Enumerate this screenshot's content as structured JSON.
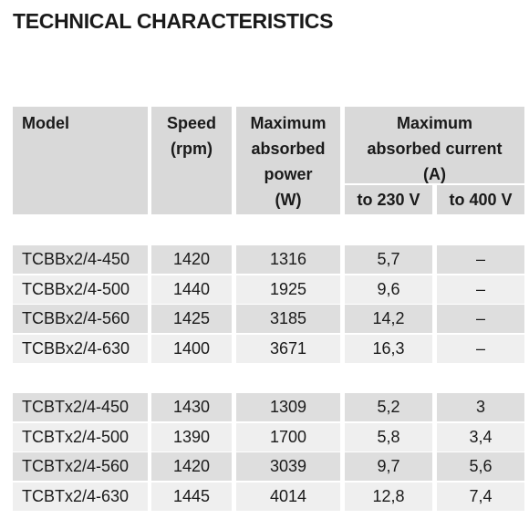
{
  "header": {
    "title": "TECHNICAL CHARACTERISTICS"
  },
  "table": {
    "columns": [
      {
        "lines": [
          "Model"
        ]
      },
      {
        "lines": [
          "Speed",
          "(rpm)"
        ]
      },
      {
        "lines": [
          "Maximum",
          "absorbed",
          "power",
          "(W)"
        ]
      },
      {
        "lines": [
          "Maximum",
          "absorbed current",
          "(A)"
        ],
        "sub": [
          "to 230 V",
          "to 400 V"
        ]
      }
    ],
    "groups": [
      [
        [
          "TCBBx2/4-450",
          "1420",
          "1316",
          "5,7",
          "–"
        ],
        [
          "TCBBx2/4-500",
          "1440",
          "1925",
          "9,6",
          "–"
        ],
        [
          "TCBBx2/4-560",
          "1425",
          "3185",
          "14,2",
          "–"
        ],
        [
          "TCBBx2/4-630",
          "1400",
          "3671",
          "16,3",
          "–"
        ]
      ],
      [
        [
          "TCBTx2/4-450",
          "1430",
          "1309",
          "5,2",
          "3"
        ],
        [
          "TCBTx2/4-500",
          "1390",
          "1700",
          "5,8",
          "3,4"
        ],
        [
          "TCBTx2/4-560",
          "1420",
          "3039",
          "9,7",
          "5,6"
        ],
        [
          "TCBTx2/4-630",
          "1445",
          "4014",
          "12,8",
          "7,4"
        ]
      ]
    ]
  }
}
